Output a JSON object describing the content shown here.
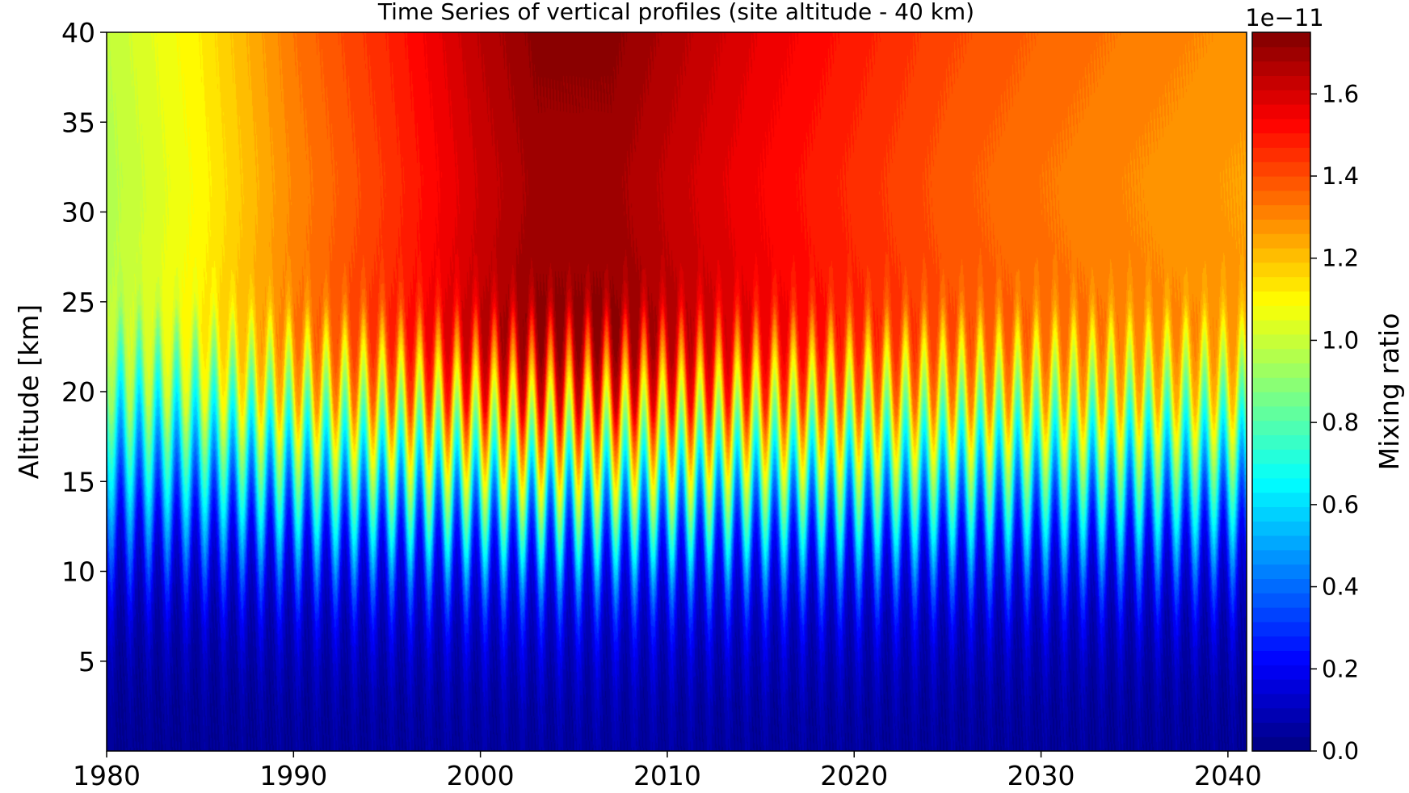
{
  "chart_data": {
    "type": "heatmap",
    "subtype": "filled-contour",
    "title": "Time Series of vertical profiles (site altitude - 40 km)",
    "xlabel": "",
    "ylabel": "Altitude [km]",
    "xlim": [
      1980,
      2041
    ],
    "ylim": [
      0,
      40
    ],
    "x_ticks": [
      1980,
      1990,
      2000,
      2010,
      2020,
      2030,
      2040
    ],
    "y_ticks": [
      5,
      10,
      15,
      20,
      25,
      30,
      35,
      40
    ],
    "colormap": "jet",
    "grid": false,
    "seasonal_cycle_period_years": 1,
    "colorbar": {
      "label": "Mixing ratio",
      "offset_text": "1e−11",
      "range": [
        0,
        1.75
      ],
      "ticks": [
        0.0,
        0.2,
        0.4,
        0.6,
        0.8,
        1.0,
        1.2,
        1.4,
        1.6
      ],
      "tick_labels": [
        "0.0",
        "0.2",
        "0.4",
        "0.6",
        "0.8",
        "1.0",
        "1.2",
        "1.4",
        "1.6"
      ],
      "levels": 50,
      "placement": "right"
    },
    "upper_level_trend": {
      "description_years": [
        1980,
        1985,
        1990,
        1995,
        2000,
        2003,
        2007,
        2010,
        2015,
        2020,
        2025,
        2030,
        2035,
        2041
      ],
      "mixing_ratio_at_40km": [
        0.98,
        1.12,
        1.33,
        1.47,
        1.65,
        1.73,
        1.73,
        1.67,
        1.57,
        1.49,
        1.41,
        1.36,
        1.32,
        1.28
      ]
    },
    "lower_level": {
      "altitude_km": [
        0,
        5,
        8,
        10,
        12,
        15,
        18,
        20,
        22,
        25
      ],
      "typical_mixing_ratio": [
        0.04,
        0.09,
        0.16,
        0.25,
        0.4,
        0.7,
        1.0,
        1.2,
        1.4,
        1.5
      ]
    }
  }
}
